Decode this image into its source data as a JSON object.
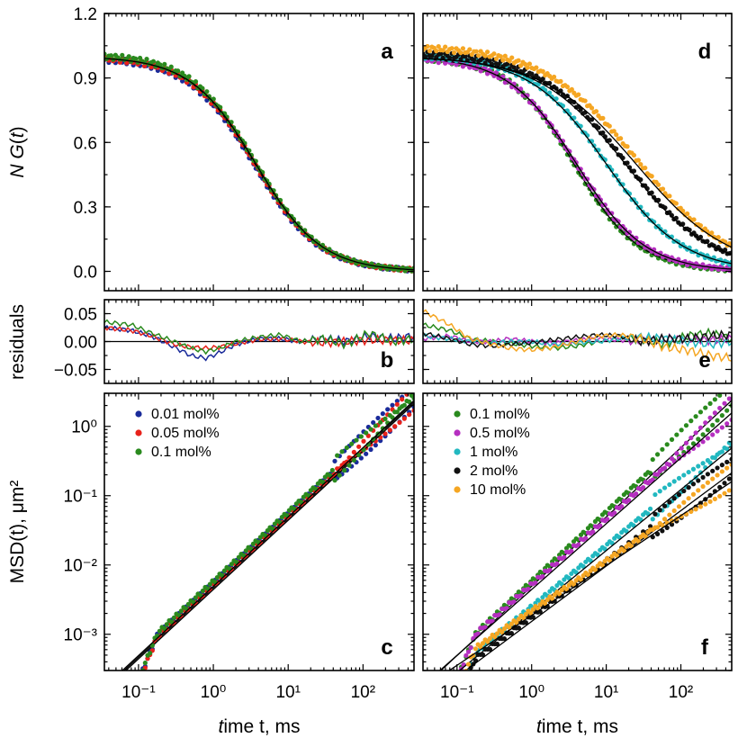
{
  "chart_data": [
    {
      "id": "a",
      "panel_label": "a",
      "type": "line",
      "xscale": "log",
      "ylabel": "N G(t)",
      "ylabel_italic": "t",
      "xlim": [
        0.035,
        480
      ],
      "ylim": [
        -0.09,
        1.2
      ],
      "yticks": [
        0.0,
        0.3,
        0.6,
        0.9,
        1.2
      ],
      "series": [
        {
          "name": "0.01 mol%",
          "color": "#1a2b9a",
          "fit_tau": 3.5,
          "fit_alpha": 1.0,
          "amp": 0.995
        },
        {
          "name": "0.05 mol%",
          "color": "#e8221b",
          "fit_tau": 3.6,
          "fit_alpha": 1.0,
          "amp": 1.0
        },
        {
          "name": "0.1 mol%",
          "color": "#2a8a1e",
          "fit_tau": 3.7,
          "fit_alpha": 1.0,
          "amp": 1.01
        }
      ]
    },
    {
      "id": "b",
      "panel_label": "b",
      "type": "line",
      "xscale": "log",
      "ylabel": "residuals",
      "xlim": [
        0.035,
        480
      ],
      "ylim": [
        -0.075,
        0.075
      ],
      "yticks": [
        -0.05,
        0.0,
        0.05
      ],
      "ytick_labels": [
        "−0.05",
        "0.00",
        "0.05"
      ],
      "series": [
        {
          "name": "0.01 mol%",
          "color": "#1a2b9a",
          "x": [
            0.035,
            0.08,
            0.15,
            0.3,
            0.5,
            0.8,
            1.2,
            2,
            4,
            8,
            15,
            30,
            60,
            120,
            250,
            480
          ],
          "y": [
            0.025,
            0.02,
            0.01,
            -0.01,
            -0.025,
            -0.03,
            -0.02,
            -0.005,
            0.005,
            0.005,
            0.0,
            0.005,
            0.0,
            0.01,
            0.005,
            0.01
          ]
        },
        {
          "name": "0.05 mol%",
          "color": "#e8221b",
          "x": [
            0.035,
            0.08,
            0.15,
            0.3,
            0.5,
            0.8,
            1.2,
            2,
            4,
            8,
            15,
            30,
            60,
            120,
            250,
            480
          ],
          "y": [
            0.025,
            0.02,
            0.01,
            -0.005,
            -0.01,
            -0.012,
            -0.01,
            -0.004,
            0.004,
            0.005,
            0.0,
            -0.002,
            0.0,
            0.003,
            0.002,
            0.002
          ]
        },
        {
          "name": "0.1 mol%",
          "color": "#2a8a1e",
          "x": [
            0.035,
            0.08,
            0.15,
            0.3,
            0.5,
            0.8,
            1.2,
            2,
            4,
            8,
            15,
            30,
            60,
            120,
            250,
            480
          ],
          "y": [
            0.035,
            0.03,
            0.015,
            0.0,
            -0.012,
            -0.018,
            -0.012,
            0.0,
            0.008,
            0.012,
            0.0,
            0.005,
            -0.005,
            0.015,
            0.0,
            0.005
          ]
        }
      ]
    },
    {
      "id": "c",
      "panel_label": "c",
      "type": "scatter",
      "xscale": "log",
      "yscale": "log",
      "xlabel": "time t, ms",
      "xlabel_italic": "t",
      "ylabel": "MSD(t),  μm²",
      "xlim": [
        0.035,
        480
      ],
      "ylim": [
        0.0003,
        3
      ],
      "xticks": [
        0.1,
        1,
        10,
        100
      ],
      "xtick_labels": [
        "10⁻¹",
        "10⁰",
        "10¹",
        "10²"
      ],
      "yticks": [
        0.001,
        0.01,
        0.1,
        1
      ],
      "ytick_labels": [
        "10⁻³",
        "10⁻²",
        "10⁻¹",
        "10⁰"
      ],
      "legend_position": "top-left",
      "series": [
        {
          "name": "0.01 mol%",
          "color": "#1a2b9a",
          "c": 0.0055,
          "a": 1.0
        },
        {
          "name": "0.05 mol%",
          "color": "#e8221b",
          "c": 0.0052,
          "a": 1.0
        },
        {
          "name": "0.1 mol%",
          "color": "#2a8a1e",
          "c": 0.0058,
          "a": 1.0
        }
      ]
    },
    {
      "id": "d",
      "panel_label": "d",
      "type": "line",
      "xscale": "log",
      "xlim": [
        0.035,
        480
      ],
      "ylim": [
        -0.09,
        1.2
      ],
      "yticks": [
        0.0,
        0.3,
        0.6,
        0.9,
        1.2
      ],
      "series": [
        {
          "name": "0.1 mol%",
          "color": "#2a8a1e",
          "fit_tau": 3.7,
          "fit_alpha": 1.0,
          "amp": 1.0
        },
        {
          "name": "0.5 mol%",
          "color": "#b52fc0",
          "fit_tau": 4.0,
          "fit_alpha": 0.95,
          "amp": 1.0
        },
        {
          "name": "1 mol%",
          "color": "#22b8c0",
          "fit_tau": 10,
          "fit_alpha": 0.85,
          "amp": 1.01
        },
        {
          "name": "2 mol%",
          "color": "#111111",
          "fit_tau": 18,
          "fit_alpha": 0.75,
          "amp": 1.02
        },
        {
          "name": "10 mol%",
          "color": "#f5a623",
          "fit_tau": 25,
          "fit_alpha": 0.7,
          "amp": 1.05
        }
      ]
    },
    {
      "id": "e",
      "panel_label": "e",
      "type": "line",
      "xscale": "log",
      "xlim": [
        0.035,
        480
      ],
      "ylim": [
        -0.075,
        0.075
      ],
      "yticks": [
        -0.05,
        0.0,
        0.05
      ],
      "series": [
        {
          "name": "0.1 mol%",
          "color": "#2a8a1e",
          "x": [
            0.035,
            0.08,
            0.15,
            0.3,
            0.5,
            1,
            2,
            4,
            8,
            15,
            30,
            60,
            120,
            250,
            480
          ],
          "y": [
            0.03,
            0.02,
            0.005,
            0.0,
            -0.003,
            -0.008,
            -0.012,
            -0.008,
            0.0,
            0.005,
            0.005,
            -0.005,
            0.01,
            0.015,
            0.005
          ]
        },
        {
          "name": "0.5 mol%",
          "color": "#b52fc0",
          "x": [
            0.035,
            0.08,
            0.15,
            0.3,
            0.5,
            1,
            2,
            4,
            8,
            15,
            30,
            60,
            120,
            250,
            480
          ],
          "y": [
            0.005,
            0.01,
            0.0,
            0.0,
            0.005,
            0.0,
            -0.003,
            0.002,
            0.005,
            0.003,
            0.0,
            0.005,
            0.005,
            0.002,
            0.005
          ]
        },
        {
          "name": "1 mol%",
          "color": "#22b8c0",
          "x": [
            0.035,
            0.08,
            0.15,
            0.3,
            0.5,
            1,
            2,
            4,
            8,
            15,
            30,
            60,
            120,
            250,
            480
          ],
          "y": [
            0.01,
            0.005,
            0.0,
            -0.002,
            0.0,
            0.0,
            -0.005,
            -0.002,
            0.0,
            0.005,
            0.008,
            0.005,
            0.0,
            -0.005,
            0.0
          ]
        },
        {
          "name": "2 mol%",
          "color": "#111111",
          "x": [
            0.035,
            0.08,
            0.15,
            0.3,
            0.5,
            1,
            2,
            4,
            8,
            15,
            30,
            60,
            120,
            250,
            480
          ],
          "y": [
            0.015,
            0.005,
            -0.005,
            -0.008,
            -0.005,
            -0.002,
            0.003,
            0.008,
            0.012,
            0.01,
            0.0,
            0.005,
            0.005,
            0.01,
            0.012
          ]
        },
        {
          "name": "10 mol%",
          "color": "#f5a623",
          "x": [
            0.035,
            0.08,
            0.15,
            0.3,
            0.5,
            1,
            2,
            4,
            8,
            15,
            30,
            60,
            120,
            250,
            480
          ],
          "y": [
            0.055,
            0.03,
            0.005,
            -0.005,
            -0.012,
            -0.015,
            -0.01,
            0.0,
            0.01,
            0.012,
            0.005,
            -0.01,
            -0.015,
            -0.025,
            -0.03
          ]
        }
      ]
    },
    {
      "id": "f",
      "panel_label": "f",
      "type": "scatter",
      "xscale": "log",
      "yscale": "log",
      "xlabel": "time t, ms",
      "xlabel_italic": "t",
      "xlim": [
        0.035,
        480
      ],
      "ylim": [
        0.0003,
        3
      ],
      "xticks": [
        0.1,
        1,
        10,
        100
      ],
      "xtick_labels": [
        "10⁻¹",
        "10⁰",
        "10¹",
        "10²"
      ],
      "legend_position": "top-left",
      "series": [
        {
          "name": "0.1 mol%",
          "color": "#2a8a1e",
          "c": 0.0058,
          "a": 1.0
        },
        {
          "name": "0.5 mol%",
          "color": "#b52fc0",
          "c": 0.0052,
          "a": 0.95
        },
        {
          "name": "1 mol%",
          "color": "#22b8c0",
          "c": 0.0025,
          "a": 0.88
        },
        {
          "name": "2 mol%",
          "color": "#111111",
          "c": 0.0018,
          "a": 0.8
        },
        {
          "name": "10 mol%",
          "color": "#f5a623",
          "c": 0.0022,
          "a": 0.72
        }
      ]
    }
  ]
}
